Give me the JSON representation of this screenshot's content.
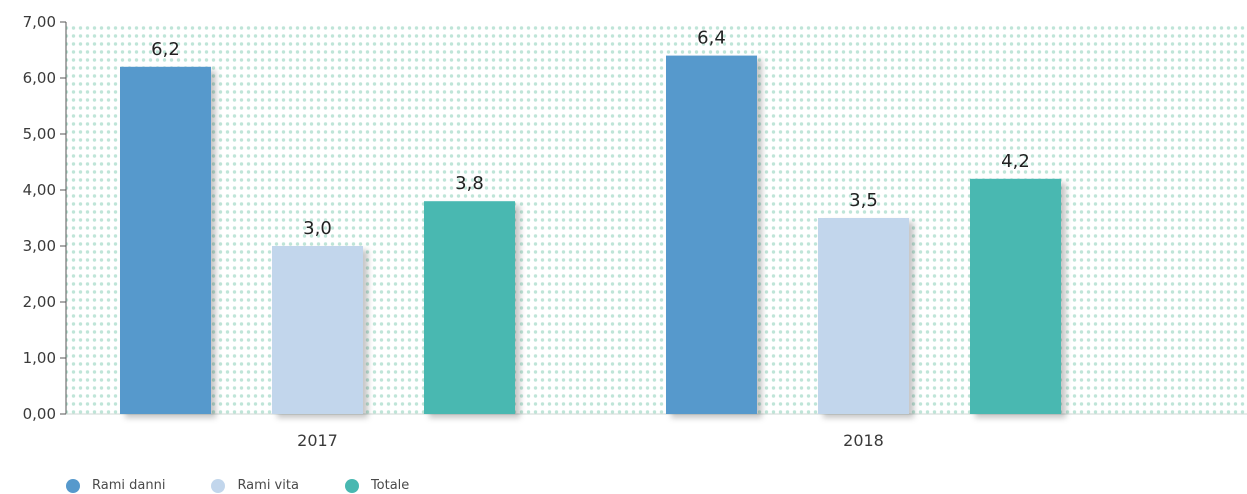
{
  "chart_data": {
    "type": "bar",
    "categories": [
      "2017",
      "2018"
    ],
    "series": [
      {
        "name": "Rami danni",
        "values": [
          6.2,
          6.4
        ],
        "labels": [
          "6,2",
          "6,4"
        ],
        "color": "#5699cc"
      },
      {
        "name": "Rami vita",
        "values": [
          3.0,
          3.5
        ],
        "labels": [
          "3,0",
          "3,5"
        ],
        "color": "#c2d6ec"
      },
      {
        "name": "Totale",
        "values": [
          3.8,
          4.2
        ],
        "labels": [
          "3,8",
          "4,2"
        ],
        "color": "#48b8b1"
      }
    ],
    "yticks": [
      "0,00",
      "1,00",
      "2,00",
      "3,00",
      "4,00",
      "5,00",
      "6,00",
      "7,00"
    ],
    "ylim": [
      0,
      7
    ],
    "grid": false,
    "legend_position": "bottom-left",
    "background_pattern_color": "#bfe5d8"
  }
}
